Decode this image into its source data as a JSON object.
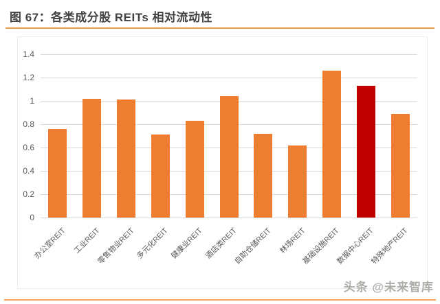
{
  "page": {
    "title": "图 67：各类成分股 REITs 相对流动性",
    "watermark": "头条 @未来智库"
  },
  "colors": {
    "bar_orange": "#ED7D31",
    "bar_highlight": "#C00000",
    "title_text": "#424242",
    "axis_text": "#595959",
    "gridline": "#D9D9D9",
    "header_rule": "#E89A3F",
    "footer_rule": "#F1A55F",
    "chart_border": "#EDEDED"
  },
  "chart_data": {
    "type": "bar",
    "title": "各类成分股 REITs 相对流动性",
    "categories": [
      "办公室REIT",
      "工业REIT",
      "零售物业REIT",
      "多元化REIT",
      "健康业REIT",
      "酒店类REIT",
      "自助仓储REIT",
      "林场REIT",
      "基础设施REIT",
      "数据中心REIT",
      "特殊地产REIT"
    ],
    "values": [
      0.76,
      1.02,
      1.01,
      0.71,
      0.83,
      1.04,
      0.72,
      0.62,
      1.26,
      1.13,
      0.89
    ],
    "highlight_index": 9,
    "xlabel": "",
    "ylabel": "",
    "ylim": [
      0,
      1.4
    ],
    "ytick_step": 0.2,
    "yticks": [
      "0",
      "0.2",
      "0.4",
      "0.6",
      "0.8",
      "1",
      "1.2",
      "1.4"
    ],
    "grid": true,
    "legend_position": "none",
    "bar_color": "#ED7D31",
    "highlight_color": "#C00000"
  }
}
